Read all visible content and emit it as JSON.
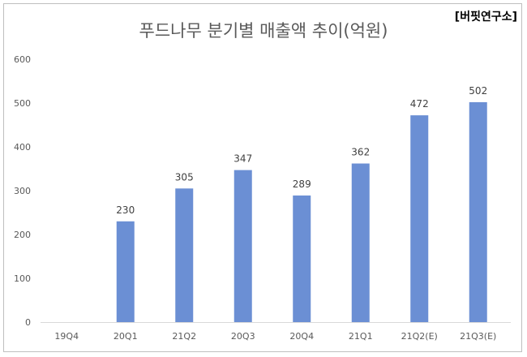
{
  "source_label": "[버핏연구소]",
  "chart_data": {
    "type": "bar",
    "title": "푸드나무 분기별 매출액 추이(억원)",
    "categories": [
      "19Q4",
      "20Q1",
      "21Q2",
      "20Q3",
      "20Q4",
      "21Q1",
      "21Q2(E)",
      "21Q3(E)"
    ],
    "values": [
      null,
      230,
      305,
      347,
      289,
      362,
      472,
      502
    ],
    "data_labels": [
      "",
      "230",
      "305",
      "347",
      "289",
      "362",
      "472",
      "502"
    ],
    "y_ticks": [
      "0",
      "100",
      "200",
      "300",
      "400",
      "500",
      "600"
    ],
    "ylim": [
      0,
      600
    ],
    "grid": false,
    "legend": "none",
    "bar_color": "#6b8fd4"
  }
}
